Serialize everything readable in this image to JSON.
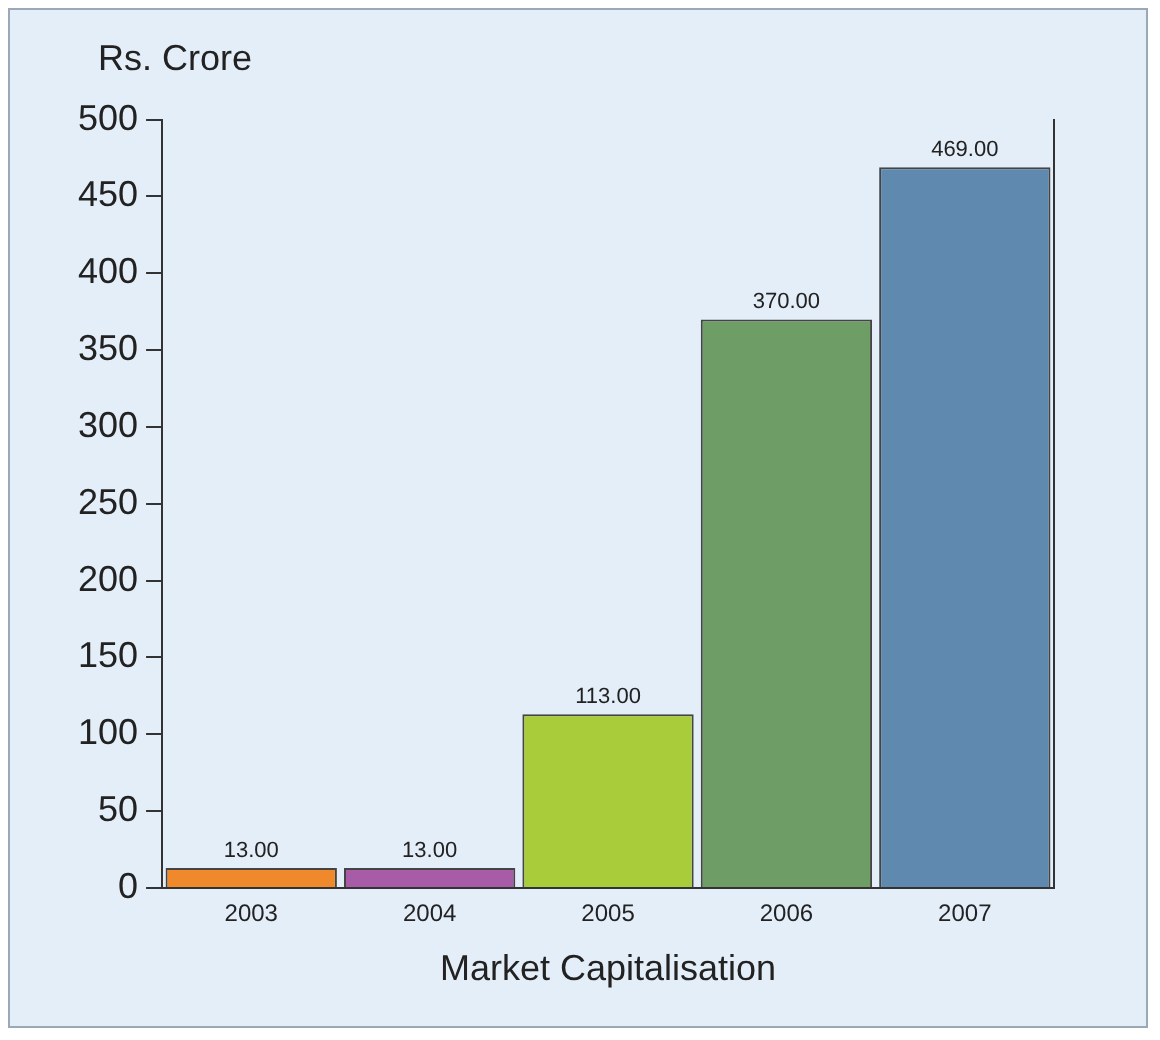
{
  "chart_data": {
    "type": "bar",
    "ylabel": "Rs. Crore",
    "xlabel": "Market Capitalisation",
    "categories": [
      "2003",
      "2004",
      "2005",
      "2006",
      "2007"
    ],
    "values": [
      13,
      13,
      113,
      370,
      469
    ],
    "value_labels": [
      "13.00",
      "13.00",
      "113.00",
      "370.00",
      "469.00"
    ],
    "colors": [
      "#f0882c",
      "#a85ca8",
      "#a8cc3a",
      "#6f9d66",
      "#6089af"
    ],
    "ylim": [
      0,
      500
    ],
    "yticks": [
      0,
      50,
      100,
      150,
      200,
      250,
      300,
      350,
      400,
      450,
      500
    ],
    "grid": false,
    "legend": false
  }
}
